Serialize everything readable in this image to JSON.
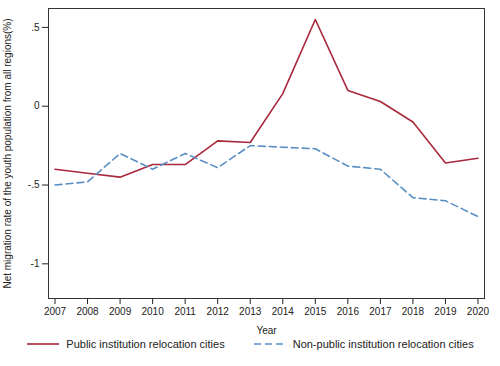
{
  "chart_data": {
    "type": "line",
    "x_label": "Year",
    "y_label": "Net migration rate of the youth population from all regions(%)",
    "x": [
      2007,
      2008,
      2009,
      2010,
      2011,
      2012,
      2013,
      2014,
      2015,
      2016,
      2017,
      2018,
      2019,
      2020
    ],
    "series": [
      {
        "name": "Public institution relocation cities",
        "color": "#a8283c",
        "line_style": "solid",
        "values": [
          -0.4,
          -0.425,
          -0.45,
          -0.37,
          -0.37,
          -0.22,
          -0.23,
          0.08,
          0.55,
          0.1,
          0.03,
          -0.1,
          -0.36,
          -0.33
        ]
      },
      {
        "name": "Non-public institution relocation cities",
        "color": "#5a8fc4",
        "line_style": "dashed",
        "values": [
          -0.5,
          -0.48,
          -0.3,
          -0.4,
          -0.3,
          -0.39,
          -0.25,
          -0.26,
          -0.27,
          -0.38,
          -0.4,
          -0.58,
          -0.6,
          -0.7
        ]
      }
    ],
    "xlim": [
      2006.8,
      2020.2
    ],
    "xticks": [
      2007,
      2008,
      2009,
      2010,
      2011,
      2012,
      2013,
      2014,
      2015,
      2016,
      2017,
      2018,
      2019,
      2020
    ],
    "ylim": [
      -1.22,
      0.62
    ],
    "yticks": [
      {
        "value": 0.5,
        "label": ".5"
      },
      0,
      {
        "value": -0.5,
        "label": "-.5"
      },
      -1
    ],
    "grid": false,
    "legend": "bottom"
  }
}
